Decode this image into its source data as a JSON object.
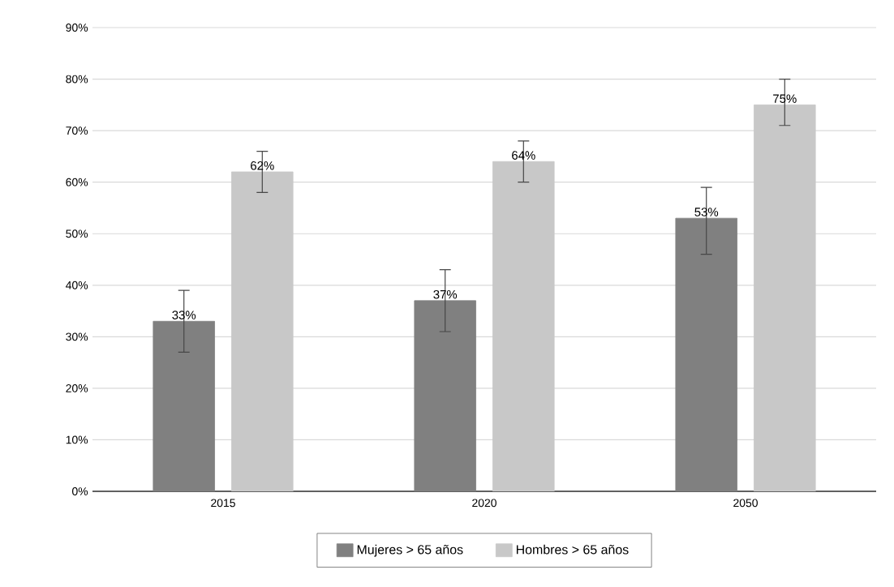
{
  "chart_data": {
    "type": "bar",
    "categories": [
      "2015",
      "2020",
      "2050"
    ],
    "series": [
      {
        "name": "Mujeres > 65 años",
        "color": "#808080",
        "values": [
          33,
          37,
          53
        ],
        "value_labels": [
          "33%",
          "37%",
          "53%"
        ],
        "errors": [
          [
            27,
            39
          ],
          [
            31,
            43
          ],
          [
            46,
            59
          ]
        ]
      },
      {
        "name": "Hombres > 65 años",
        "color": "#c8c8c8",
        "values": [
          62,
          64,
          75
        ],
        "value_labels": [
          "62%",
          "64%",
          "75%"
        ],
        "errors": [
          [
            58,
            66
          ],
          [
            60,
            68
          ],
          [
            71,
            80
          ]
        ]
      }
    ],
    "ylim": [
      0,
      90
    ],
    "yticks": [
      {
        "value": 0,
        "label": "0%"
      },
      {
        "value": 10,
        "label": "10%"
      },
      {
        "value": 20,
        "label": "20%"
      },
      {
        "value": 30,
        "label": "30%"
      },
      {
        "value": 40,
        "label": "40%"
      },
      {
        "value": 50,
        "label": "50%"
      },
      {
        "value": 60,
        "label": "60%"
      },
      {
        "value": 70,
        "label": "70%"
      },
      {
        "value": 80,
        "label": "80%"
      },
      {
        "value": 90,
        "label": "90%"
      }
    ],
    "grid": "y",
    "legend": "bottom"
  }
}
